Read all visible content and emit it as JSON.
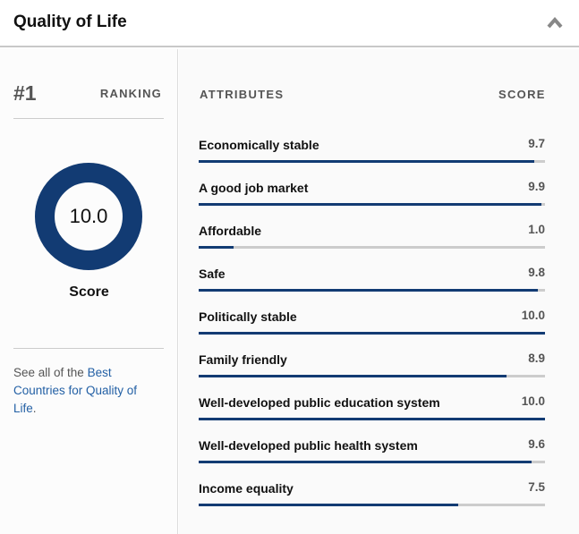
{
  "header": {
    "title": "Quality of Life",
    "collapse_icon": "chevron-up-icon"
  },
  "left": {
    "rank": "#1",
    "rank_label": "RANKING",
    "score": "10.0",
    "score_value": 10.0,
    "score_label": "Score",
    "see_prefix": "See all of the ",
    "see_link": "Best Countries for Quality of Life",
    "see_suffix": "."
  },
  "table": {
    "col_attr": "ATTRIBUTES",
    "col_score": "SCORE",
    "max": 10,
    "rows": [
      {
        "label": "Economically stable",
        "score": "9.7",
        "value": 9.7
      },
      {
        "label": "A good job market",
        "score": "9.9",
        "value": 9.9
      },
      {
        "label": "Affordable",
        "score": "1.0",
        "value": 1.0
      },
      {
        "label": "Safe",
        "score": "9.8",
        "value": 9.8
      },
      {
        "label": "Politically stable",
        "score": "10.0",
        "value": 10.0
      },
      {
        "label": "Family friendly",
        "score": "8.9",
        "value": 8.9
      },
      {
        "label": "Well-developed public education system",
        "score": "10.0",
        "value": 10.0
      },
      {
        "label": "Well-developed public health system",
        "score": "9.6",
        "value": 9.6
      },
      {
        "label": "Income equality",
        "score": "7.5",
        "value": 7.5
      }
    ]
  },
  "colors": {
    "accent": "#123b73",
    "link": "#2360a5",
    "track": "#cccccc"
  }
}
